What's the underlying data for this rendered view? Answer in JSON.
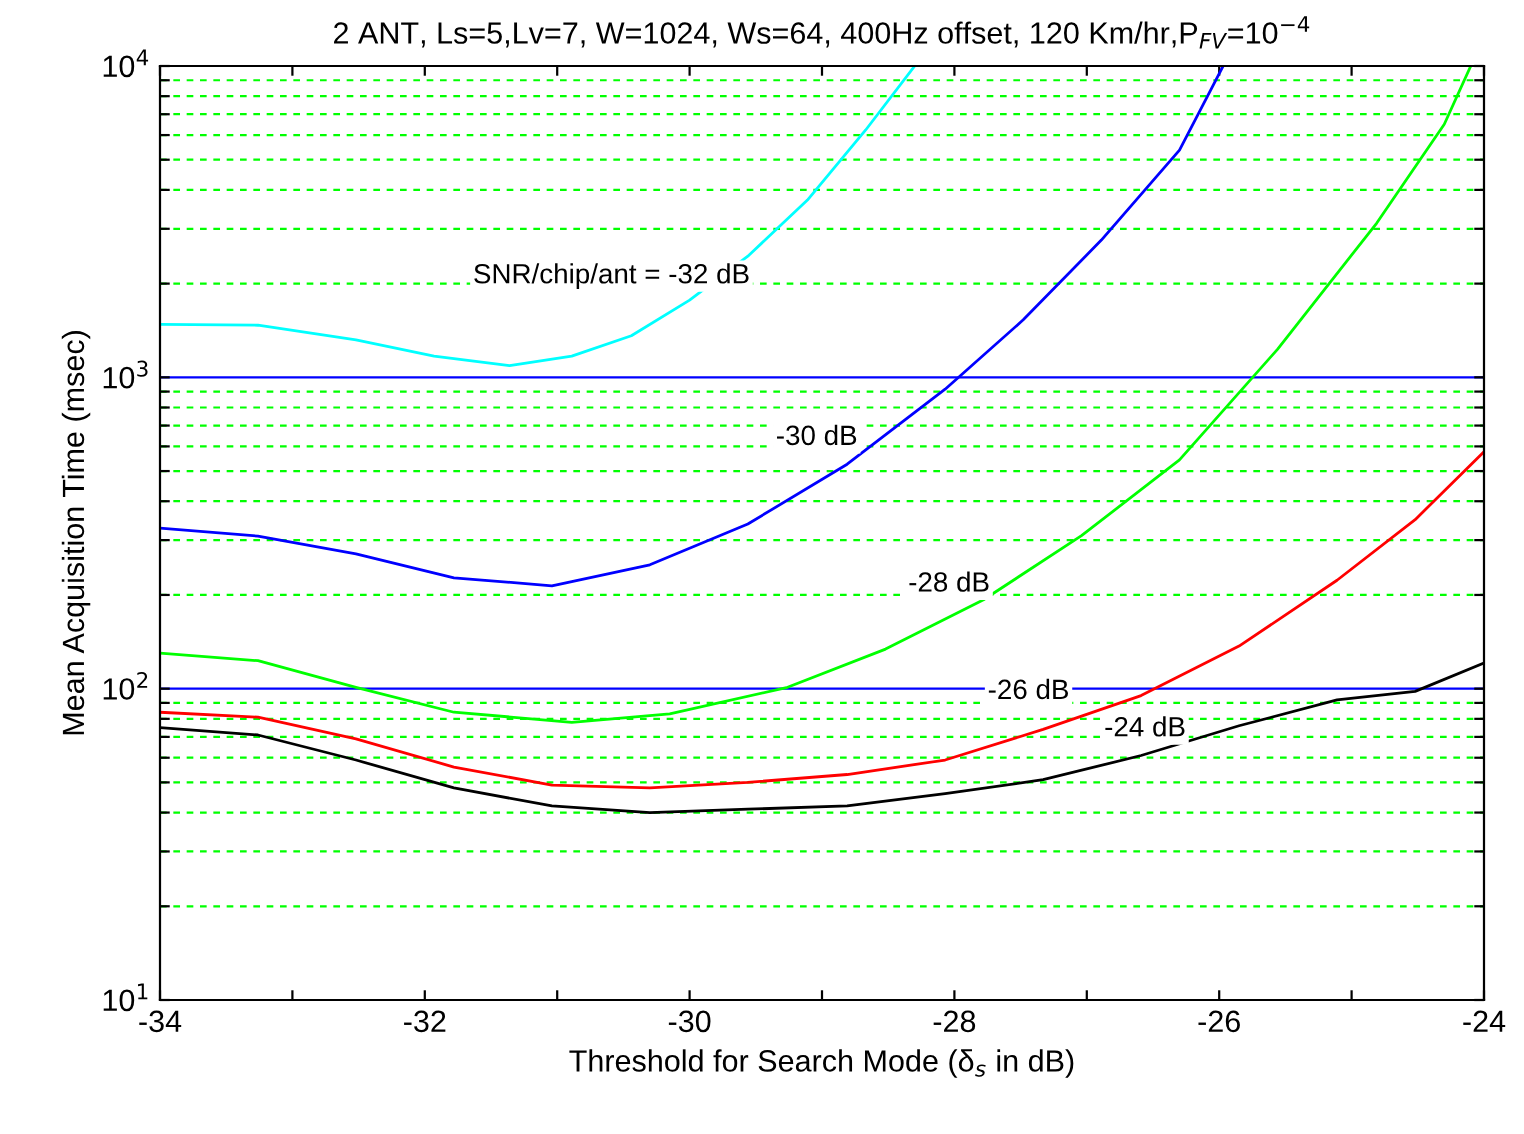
{
  "chart_data": {
    "type": "line",
    "title": "2 ANT, Ls=5,Lv=7, W=1024, Ws=64, 400Hz offset, 120 Km/hr,P$_{FV}$=10$^{−4}$",
    "xlabel": "Threshold for Search Mode (δ$_{s}$ in dB)",
    "ylabel": "Mean Acquisition Time (msec)",
    "log": "y",
    "grid": "y",
    "line_style": "solid",
    "marker": "none",
    "xlim": [
      -34,
      -24
    ],
    "ylim": [
      10,
      10000
    ],
    "xticks": [
      -34,
      {
        "value": -33,
        "label": null
      },
      -32,
      {
        "value": -31,
        "label": null
      },
      -30,
      {
        "value": -29,
        "label": null
      },
      -28,
      {
        "value": -27,
        "label": null
      },
      -26,
      {
        "value": -25,
        "label": null
      },
      -24
    ],
    "yticks": [
      {
        "value": 10,
        "label": "10$^{1}$"
      },
      {
        "value": 20,
        "label": null
      },
      {
        "value": 30,
        "label": null
      },
      {
        "value": 40,
        "label": null
      },
      {
        "value": 50,
        "label": null
      },
      {
        "value": 60,
        "label": null
      },
      {
        "value": 70,
        "label": null
      },
      {
        "value": 80,
        "label": null
      },
      {
        "value": 90,
        "label": null
      },
      {
        "value": 100,
        "label": "10$^{2}$"
      },
      {
        "value": 200,
        "label": null
      },
      {
        "value": 300,
        "label": null
      },
      {
        "value": 400,
        "label": null
      },
      {
        "value": 500,
        "label": null
      },
      {
        "value": 600,
        "label": null
      },
      {
        "value": 700,
        "label": null
      },
      {
        "value": 800,
        "label": null
      },
      {
        "value": 900,
        "label": null
      },
      {
        "value": 1000,
        "label": "10$^{3}$"
      },
      {
        "value": 2000,
        "label": null
      },
      {
        "value": 3000,
        "label": null
      },
      {
        "value": 4000,
        "label": null
      },
      {
        "value": 5000,
        "label": null
      },
      {
        "value": 6000,
        "label": null
      },
      {
        "value": 7000,
        "label": null
      },
      {
        "value": 8000,
        "label": null
      },
      {
        "value": 9000,
        "label": null
      },
      {
        "value": 10000,
        "label": "10$^{4}$"
      }
    ],
    "series": [
      {
        "color": "#00ffff",
        "x": [
          -34,
          -33.26,
          -32.52,
          -31.93,
          -31.36,
          -30.89,
          -30.44,
          -30.0,
          -29.56,
          -29.11,
          -28.67,
          -28.3
        ],
        "values": [
          1480,
          1470,
          1320,
          1170,
          1090,
          1170,
          1360,
          1770,
          2450,
          3710,
          6230,
          10000
        ]
      },
      {
        "color": "#0000ff",
        "x": [
          -34,
          -33.26,
          -32.52,
          -31.78,
          -31.04,
          -30.3,
          -29.56,
          -28.81,
          -28.07,
          -27.48,
          -26.89,
          -26.3,
          -25.97
        ],
        "values": [
          328,
          309,
          271,
          227,
          214,
          250,
          338,
          526,
          916,
          1530,
          2760,
          5370,
          10000
        ]
      },
      {
        "color": "#00ff00",
        "x": [
          -34,
          -33.26,
          -32.52,
          -31.78,
          -30.89,
          -30.15,
          -29.26,
          -28.52,
          -27.78,
          -27.04,
          -26.3,
          -25.56,
          -24.81,
          -24.3,
          -24.1
        ],
        "values": [
          130,
          123,
          101,
          84,
          78,
          83,
          101,
          134,
          193,
          310,
          543,
          1230,
          3130,
          6500,
          10000
        ]
      },
      {
        "color": "#ff0000",
        "x": [
          -34,
          -33.26,
          -32.52,
          -31.78,
          -31.04,
          -30.3,
          -29.56,
          -28.81,
          -28.07,
          -27.33,
          -26.59,
          -25.85,
          -25.11,
          -24.52,
          -24.0
        ],
        "values": [
          84,
          81,
          69,
          56,
          49,
          48,
          50,
          53,
          59,
          74,
          95,
          137,
          223,
          349,
          577
        ]
      },
      {
        "color": "#000000",
        "x": [
          -34,
          -33.26,
          -32.52,
          -31.78,
          -31.04,
          -30.3,
          -29.56,
          -28.81,
          -28.07,
          -27.33,
          -26.59,
          -25.85,
          -25.11,
          -24.52,
          -24.0
        ],
        "values": [
          75,
          71,
          59,
          48,
          42,
          40,
          41,
          42,
          46,
          51,
          61,
          76,
          92,
          98,
          121
        ]
      }
    ],
    "annotations": [
      "SNR/chip/ant = -32 dB",
      "-30 dB",
      "-28 dB",
      "-26 dB",
      "-24 dB"
    ]
  }
}
